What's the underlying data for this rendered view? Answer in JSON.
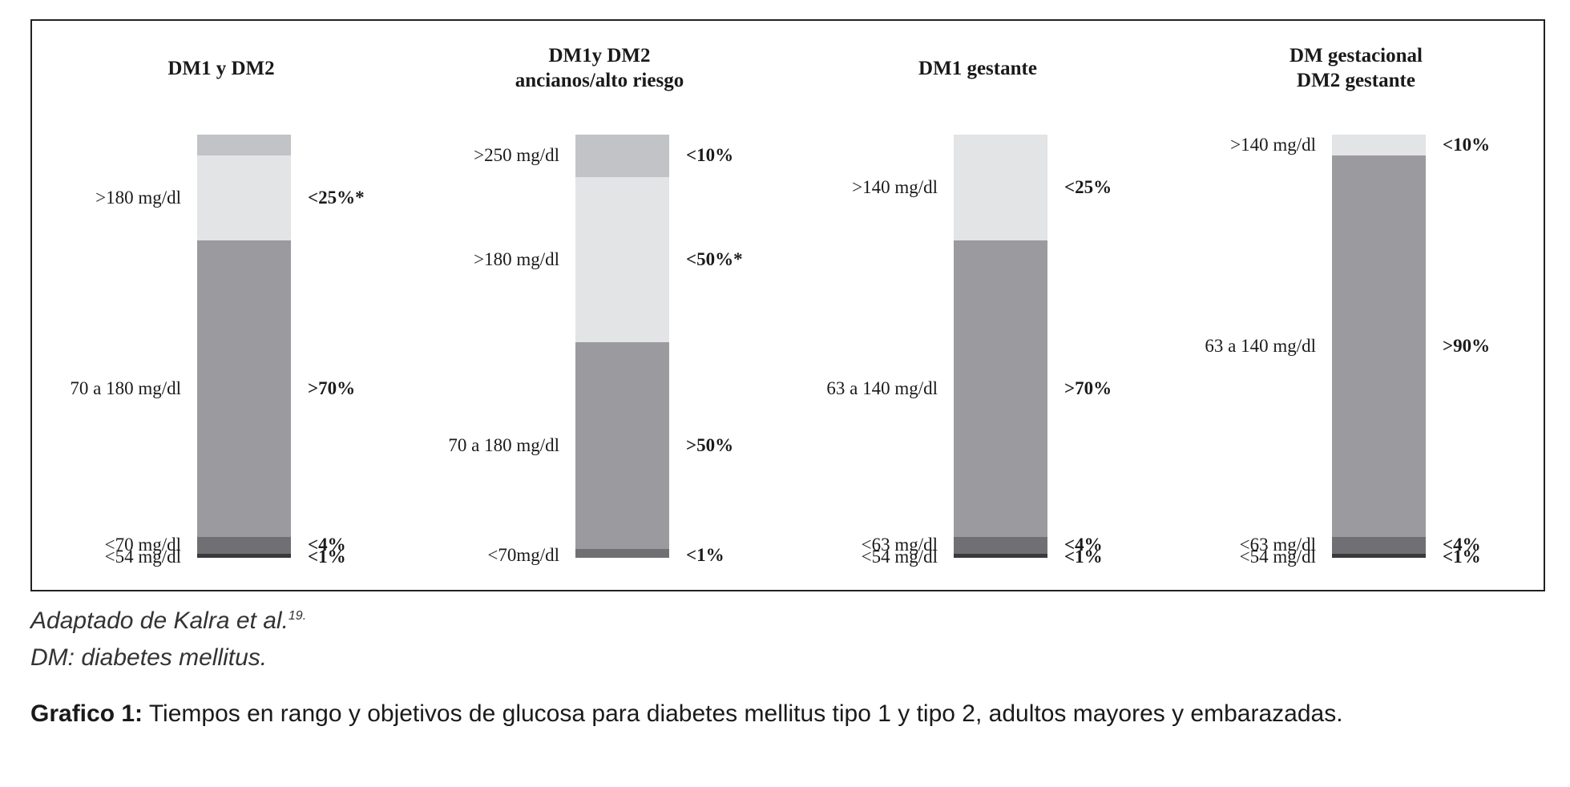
{
  "chart_data": {
    "type": "stacked-bar",
    "colors": {
      "very_high": "#c2c3c7",
      "high": "#e3e4e6",
      "in_range": "#9a9a9f",
      "low": "#707074",
      "very_low": "#3a3a3c"
    },
    "panels": [
      {
        "title": [
          "DM1 y DM2"
        ],
        "segments": [
          {
            "level": "very_high",
            "percent": 5,
            "range": "",
            "target": ""
          },
          {
            "level": "high",
            "percent": 20,
            "range": ">180 mg/dl",
            "target": "<25%*"
          },
          {
            "level": "in_range",
            "percent": 70,
            "range": "70 a 180 mg/dl",
            "target": ">70%"
          },
          {
            "level": "low",
            "percent": 4,
            "range": "<70 mg/dl",
            "target": "<4%"
          },
          {
            "level": "very_low",
            "percent": 1,
            "range": "<54 mg/dl",
            "target": "<1%"
          }
        ]
      },
      {
        "title": [
          "DM1y DM2",
          "ancianos/alto riesgo"
        ],
        "segments": [
          {
            "level": "very_high",
            "percent": 10,
            "range": ">250 mg/dl",
            "target": "<10%"
          },
          {
            "level": "high",
            "percent": 39,
            "range": ">180 mg/dl",
            "target": "<50%*"
          },
          {
            "level": "in_range",
            "percent": 49,
            "range": "70 a 180 mg/dl",
            "target": ">50%"
          },
          {
            "level": "low",
            "percent": 2,
            "range": "<70mg/dl",
            "target": "<1%"
          }
        ]
      },
      {
        "title": [
          "DM1 gestante"
        ],
        "segments": [
          {
            "level": "high",
            "percent": 25,
            "range": ">140 mg/dl",
            "target": "<25%"
          },
          {
            "level": "in_range",
            "percent": 70,
            "range": "63 a 140 mg/dl",
            "target": ">70%"
          },
          {
            "level": "low",
            "percent": 4,
            "range": "<63 mg/dl",
            "target": "<4%"
          },
          {
            "level": "very_low",
            "percent": 1,
            "range": "<54 mg/dl",
            "target": "<1%"
          }
        ]
      },
      {
        "title": [
          "DM gestacional",
          "DM2 gestante"
        ],
        "segments": [
          {
            "level": "high",
            "percent": 5,
            "range": ">140 mg/dl",
            "target": "<10%"
          },
          {
            "level": "in_range",
            "percent": 90,
            "range": "63 a 140 mg/dl",
            "target": ">90%"
          },
          {
            "level": "low",
            "percent": 4,
            "range": "<63 mg/dl",
            "target": "<4%"
          },
          {
            "level": "very_low",
            "percent": 1,
            "range": "<54 mg/dl",
            "target": "<1%"
          }
        ]
      }
    ]
  },
  "footnote": {
    "source_prefix": "Adaptado de Kalra et al.",
    "source_ref": "19.",
    "abbreviation": "DM: diabetes mellitus."
  },
  "caption": {
    "label": "Grafico 1:",
    "text": " Tiempos en rango y objetivos de glucosa para diabetes mellitus tipo 1 y tipo 2, adultos mayores y embarazadas."
  }
}
